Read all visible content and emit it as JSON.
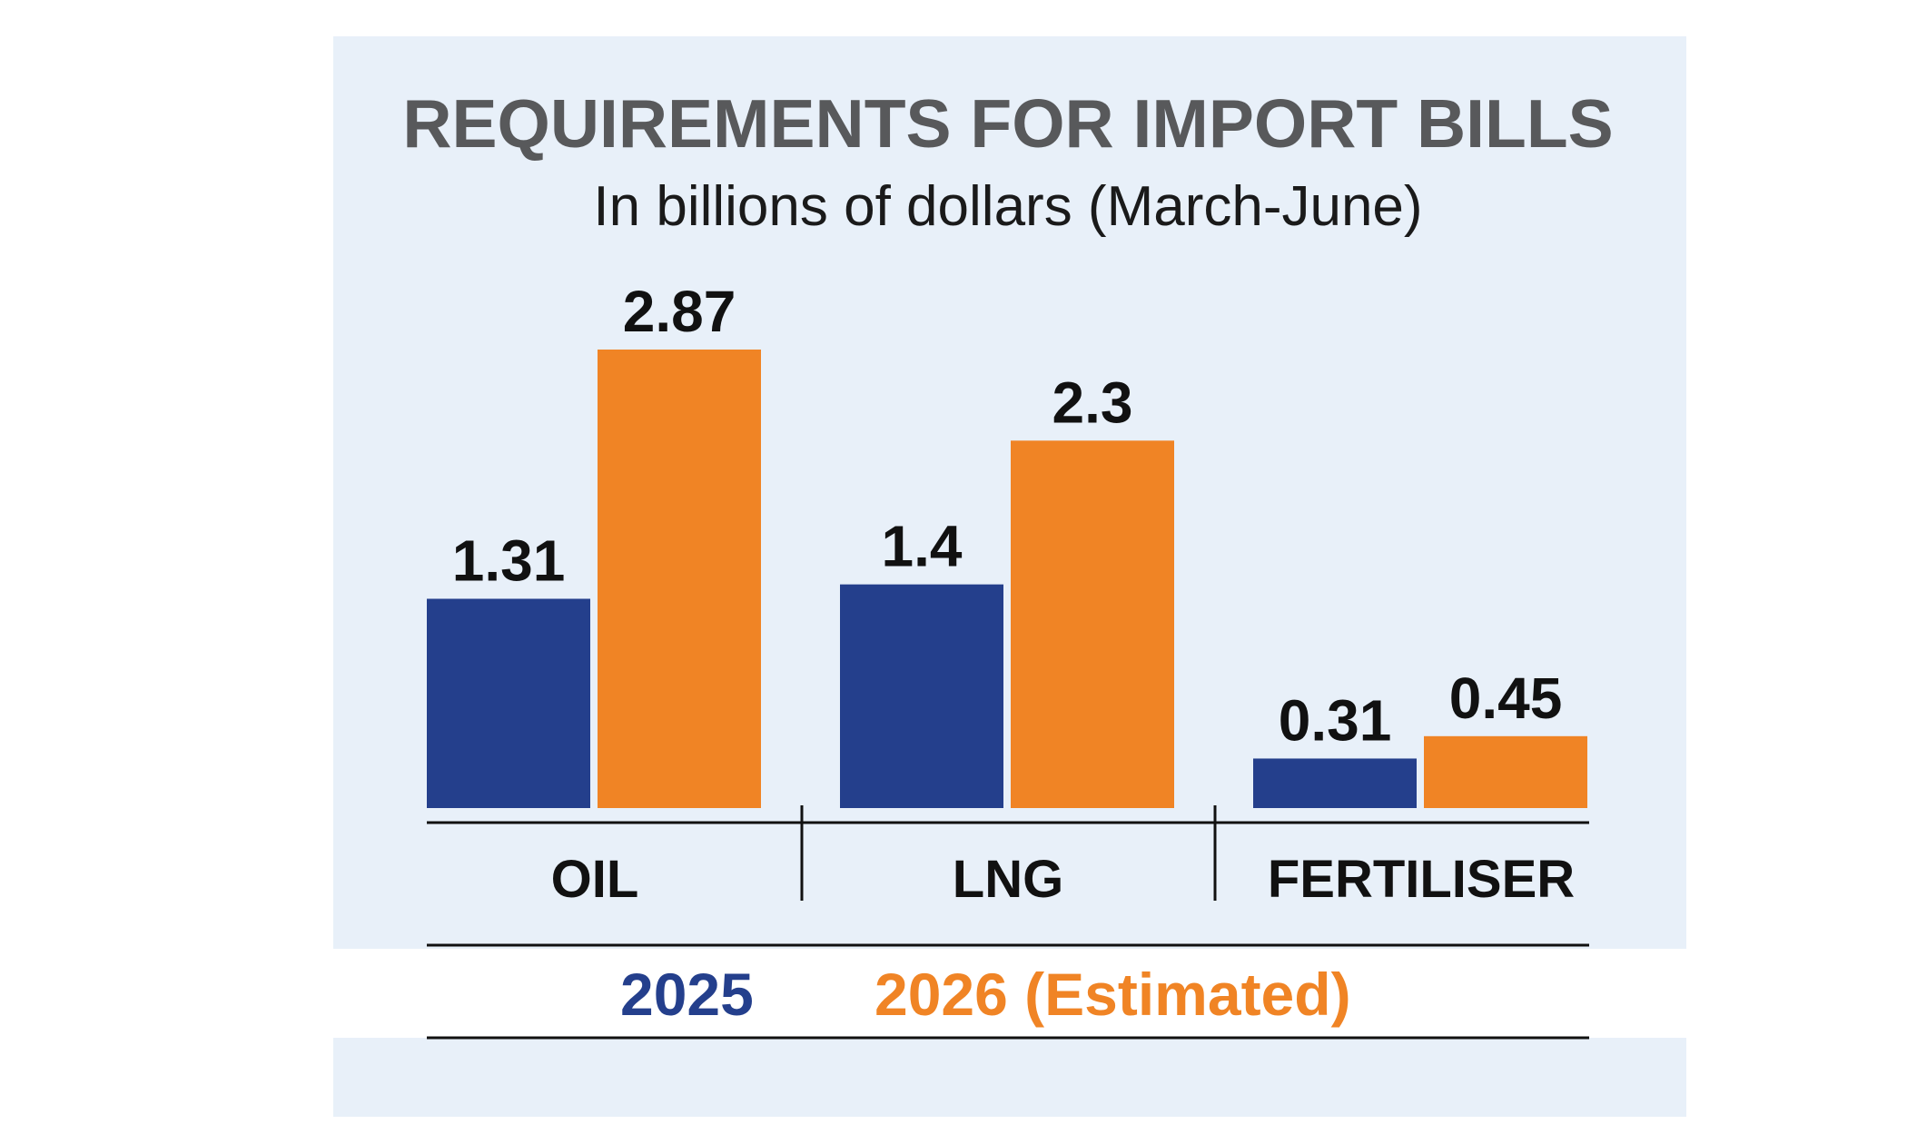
{
  "colors": {
    "panel_background": "#e8f0f9",
    "series_2025": "#243f8c",
    "series_2026": "#f08425",
    "title": "#58595b",
    "text": "#111111"
  },
  "chart_data": {
    "type": "bar",
    "title": "REQUIREMENTS FOR IMPORT BILLS",
    "subtitle": "In billions of dollars (March-June)",
    "categories": [
      "OIL",
      "LNG",
      "FERTILISER"
    ],
    "series": [
      {
        "name": "2025",
        "values": [
          1.31,
          1.4,
          0.31
        ],
        "labels": [
          "1.31",
          "1.4",
          "0.31"
        ]
      },
      {
        "name": "2026 (Estimated)",
        "values": [
          2.87,
          2.3,
          0.45
        ],
        "labels": [
          "2.87",
          "2.3",
          "0.45"
        ]
      }
    ],
    "ylim": [
      0,
      2.87
    ],
    "grid": false,
    "legend_position": "bottom"
  }
}
